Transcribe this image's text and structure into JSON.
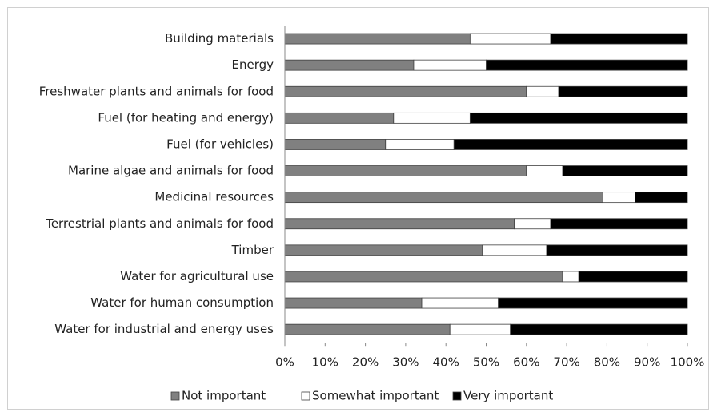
{
  "chart_data": {
    "type": "stacked-bar-horizontal",
    "categories": [
      "Building materials",
      "Energy",
      "Freshwater plants and animals for food",
      "Fuel (for heating and energy)",
      "Fuel (for vehicles)",
      "Marine algae and animals for food",
      "Medicinal resources",
      "Terrestrial plants and animals for food",
      "Timber",
      "Water for agricultural use",
      "Water for human consumption",
      "Water for industrial and energy uses"
    ],
    "series": [
      {
        "name": "Not important",
        "color": "#808080",
        "values": [
          46,
          32,
          60,
          27,
          25,
          60,
          79,
          57,
          49,
          69,
          34,
          41
        ]
      },
      {
        "name": "Somewhat important",
        "color": "#ffffff",
        "values": [
          20,
          18,
          8,
          19,
          17,
          9,
          8,
          9,
          16,
          4,
          19,
          15
        ]
      },
      {
        "name": "Very important",
        "color": "#000000",
        "values": [
          34,
          50,
          32,
          54,
          58,
          31,
          13,
          34,
          35,
          27,
          47,
          44
        ]
      }
    ],
    "xlim": [
      0,
      100
    ],
    "xticks": [
      {
        "value": 0,
        "label": "0%"
      },
      {
        "value": 10,
        "label": "10%"
      },
      {
        "value": 20,
        "label": "20%"
      },
      {
        "value": 30,
        "label": "30%"
      },
      {
        "value": 40,
        "label": "40%"
      },
      {
        "value": 50,
        "label": "50%"
      },
      {
        "value": 60,
        "label": "60%"
      },
      {
        "value": 70,
        "label": "70%"
      },
      {
        "value": 80,
        "label": "80%"
      },
      {
        "value": 90,
        "label": "90%"
      },
      {
        "value": 100,
        "label": "100%"
      }
    ],
    "grid": false,
    "legend": "bottom"
  }
}
